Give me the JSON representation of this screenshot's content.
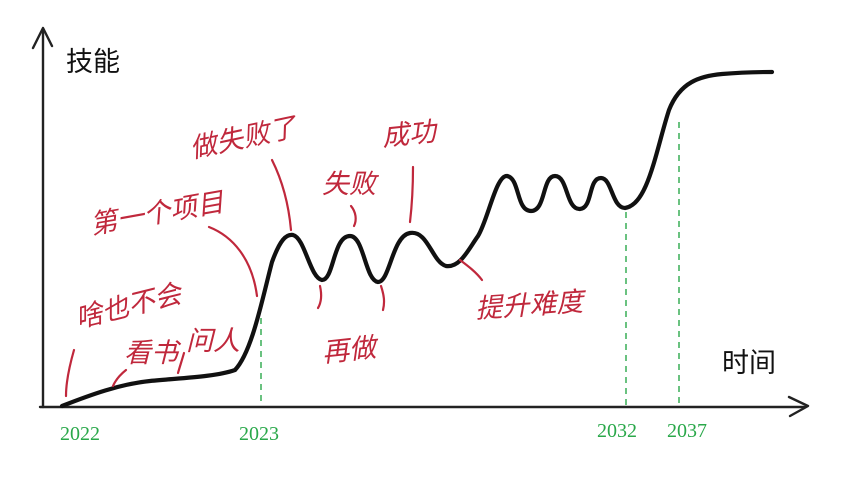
{
  "y_axis_label": "技能",
  "x_axis_label": "时间",
  "years": [
    "2022",
    "2023",
    "2032",
    "2037"
  ],
  "annotations": {
    "beginner": "啥也不会",
    "read_books": "看书",
    "ask_people": "问人",
    "first_project": "第一个项目",
    "failed": "做失败了",
    "fail": "失败",
    "redo": "再做",
    "success": "成功",
    "raise_difficulty": "提升难度"
  },
  "colors": {
    "curve": "#111111",
    "annotation": "#c0283c",
    "year_marker": "#2aa84a"
  }
}
